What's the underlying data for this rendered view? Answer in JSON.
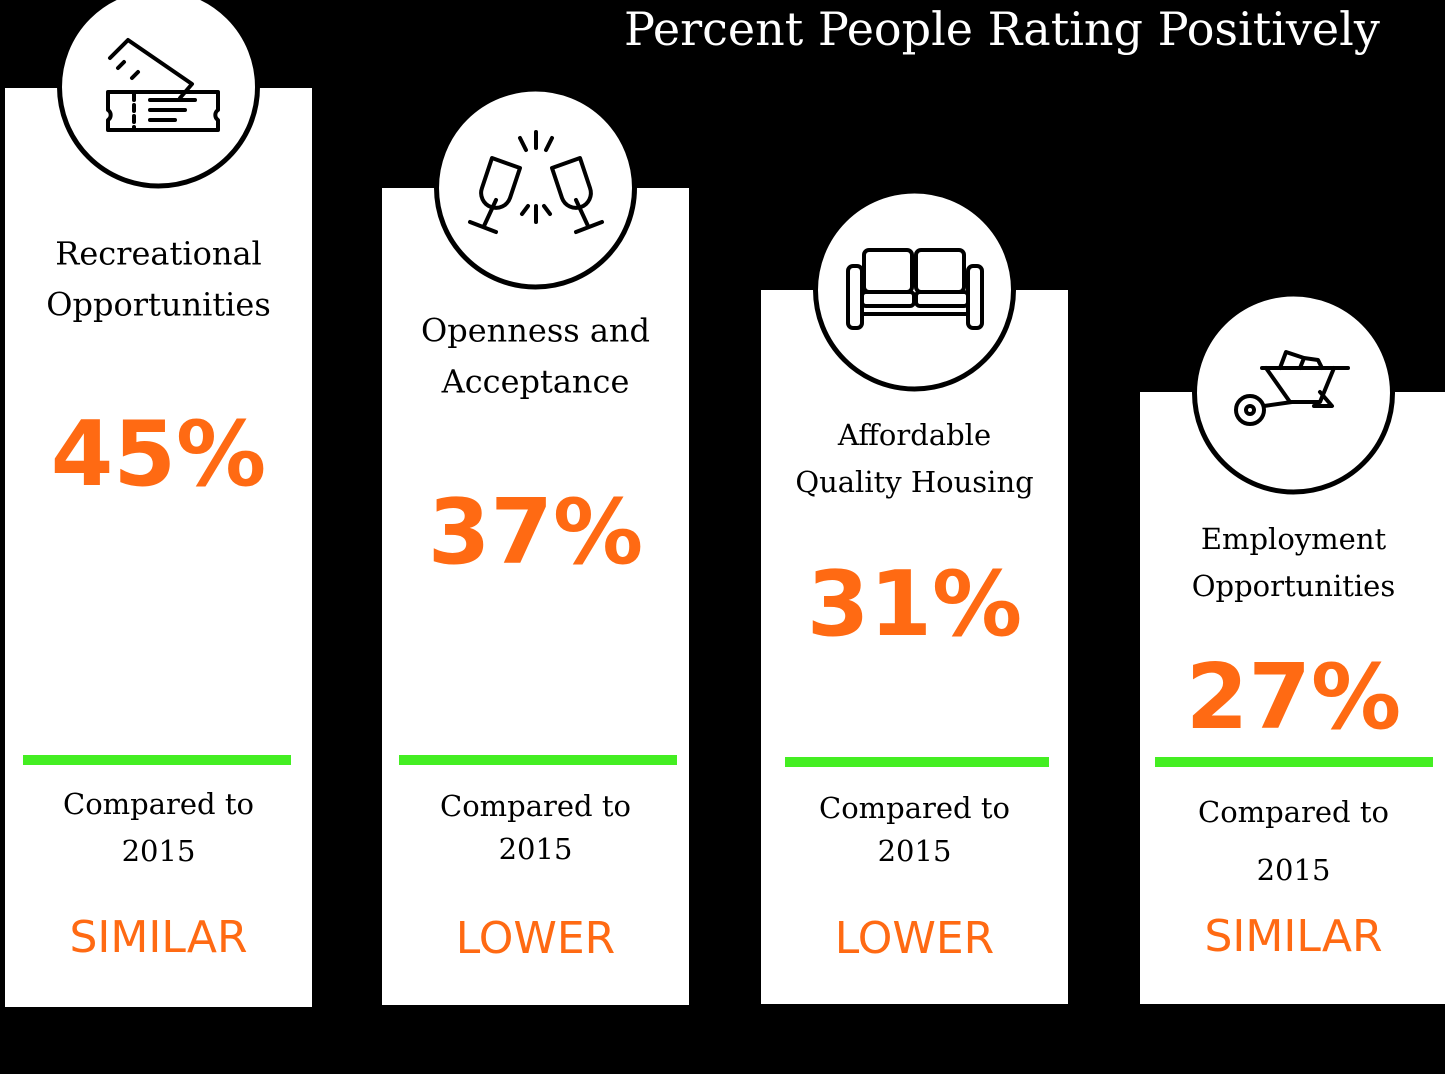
{
  "title": "Percent People Rating Positively",
  "cards": [
    {
      "label": [
        "Recreational",
        "Opportunities"
      ],
      "percent": "45%",
      "comparison": [
        "Compared to",
        "2015"
      ],
      "result": "SIMILAR"
    },
    {
      "label": [
        "Openness and",
        "Acceptance"
      ],
      "percent": "37%",
      "comparison": [
        "Compared to",
        "2015"
      ],
      "result": "LOWER"
    },
    {
      "label": [
        "Affordable",
        "Quality Housing"
      ],
      "percent": "31%",
      "comparison": [
        "Compared to",
        "2015"
      ],
      "result": "LOWER"
    },
    {
      "label": [
        "Employment",
        "Opportunities"
      ],
      "percent": "27%",
      "comparison": [
        "Compared to",
        "2015"
      ],
      "result": "SIMILAR"
    }
  ]
}
